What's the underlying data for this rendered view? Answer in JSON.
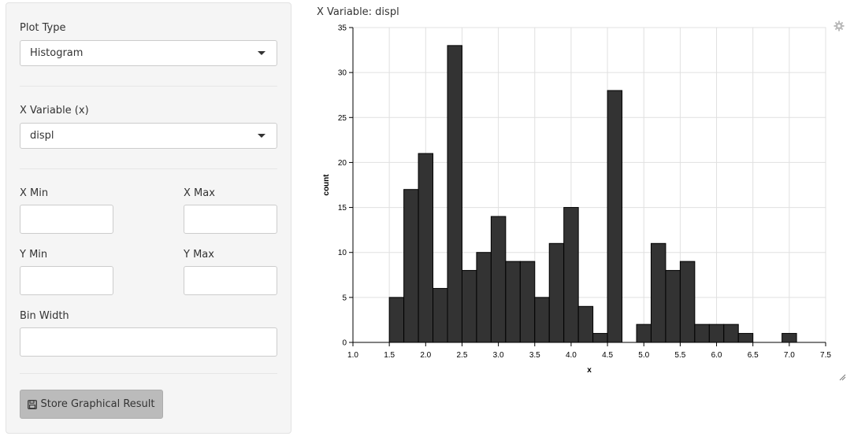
{
  "sidebar": {
    "plot_type": {
      "label": "Plot Type",
      "value": "Histogram"
    },
    "x_variable": {
      "label": "X Variable (x)",
      "value": "displ"
    },
    "x_min": {
      "label": "X Min",
      "value": ""
    },
    "x_max": {
      "label": "X Max",
      "value": ""
    },
    "y_min": {
      "label": "Y Min",
      "value": ""
    },
    "y_max": {
      "label": "Y Max",
      "value": ""
    },
    "bin_width": {
      "label": "Bin Width",
      "value": ""
    },
    "store_button": {
      "label": "Store Graphical Result",
      "icon": "save-icon"
    }
  },
  "plot": {
    "title": "X Variable: displ",
    "settings_icon": "gear-icon",
    "resize_icon": "resize-handle-icon"
  },
  "chart_data": {
    "type": "bar",
    "xlabel": "x",
    "ylabel": "count",
    "xlim": [
      1.0,
      7.5
    ],
    "ylim": [
      0,
      35
    ],
    "xticks": [
      "1.0",
      "1.5",
      "2.0",
      "2.5",
      "3.0",
      "3.5",
      "4.0",
      "4.5",
      "5.0",
      "5.5",
      "6.0",
      "6.5",
      "7.0",
      "7.5"
    ],
    "yticks": [
      "0",
      "5",
      "10",
      "15",
      "20",
      "25",
      "30",
      "35"
    ],
    "grid": true,
    "bar_color": "#333333",
    "bins": [
      {
        "start": 1.5,
        "end": 1.7,
        "count": 5
      },
      {
        "start": 1.7,
        "end": 1.9,
        "count": 17
      },
      {
        "start": 1.9,
        "end": 2.1,
        "count": 21
      },
      {
        "start": 2.1,
        "end": 2.3,
        "count": 6
      },
      {
        "start": 2.3,
        "end": 2.5,
        "count": 33
      },
      {
        "start": 2.5,
        "end": 2.7,
        "count": 8
      },
      {
        "start": 2.7,
        "end": 2.9,
        "count": 10
      },
      {
        "start": 2.9,
        "end": 3.1,
        "count": 14
      },
      {
        "start": 3.1,
        "end": 3.3,
        "count": 9
      },
      {
        "start": 3.3,
        "end": 3.5,
        "count": 9
      },
      {
        "start": 3.5,
        "end": 3.7,
        "count": 5
      },
      {
        "start": 3.7,
        "end": 3.9,
        "count": 11
      },
      {
        "start": 3.9,
        "end": 4.1,
        "count": 15
      },
      {
        "start": 4.1,
        "end": 4.3,
        "count": 4
      },
      {
        "start": 4.3,
        "end": 4.5,
        "count": 1
      },
      {
        "start": 4.5,
        "end": 4.7,
        "count": 28
      },
      {
        "start": 4.7,
        "end": 4.9,
        "count": 0
      },
      {
        "start": 4.9,
        "end": 5.1,
        "count": 2
      },
      {
        "start": 5.1,
        "end": 5.3,
        "count": 11
      },
      {
        "start": 5.3,
        "end": 5.5,
        "count": 8
      },
      {
        "start": 5.5,
        "end": 5.7,
        "count": 9
      },
      {
        "start": 5.7,
        "end": 5.9,
        "count": 2
      },
      {
        "start": 5.9,
        "end": 6.1,
        "count": 2
      },
      {
        "start": 6.1,
        "end": 6.3,
        "count": 2
      },
      {
        "start": 6.3,
        "end": 6.5,
        "count": 1
      },
      {
        "start": 6.5,
        "end": 6.7,
        "count": 0
      },
      {
        "start": 6.7,
        "end": 6.9,
        "count": 0
      },
      {
        "start": 6.9,
        "end": 7.1,
        "count": 1
      }
    ]
  }
}
